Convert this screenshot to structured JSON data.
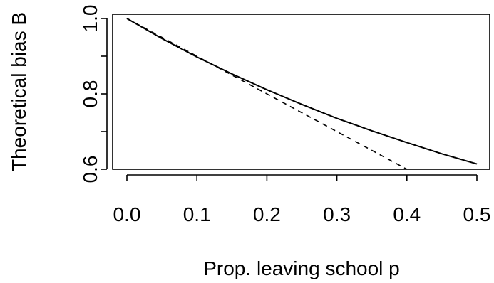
{
  "chart_data": {
    "type": "line",
    "title": "",
    "xlabel": "Prop. leaving school p",
    "ylabel": "Theoretical bias B",
    "xlim": [
      0,
      0.5
    ],
    "ylim": [
      0.6,
      1.0
    ],
    "x_ticks": [
      0.0,
      0.1,
      0.2,
      0.3,
      0.4,
      0.5
    ],
    "x_tick_labels": [
      "0.0",
      "0.1",
      "0.2",
      "0.3",
      "0.4",
      "0.5"
    ],
    "y_ticks": [
      0.6,
      0.7,
      0.8,
      0.9,
      1.0
    ],
    "y_tick_labels": [
      "0.6",
      "",
      "0.8",
      "",
      "1.0"
    ],
    "grid": false,
    "series": [
      {
        "style": "solid",
        "x": [
          0.0,
          0.05,
          0.1,
          0.15,
          0.2,
          0.25,
          0.3,
          0.35,
          0.4,
          0.45,
          0.5
        ],
        "y": [
          1.0,
          0.947,
          0.898,
          0.853,
          0.811,
          0.772,
          0.735,
          0.702,
          0.671,
          0.641,
          0.614
        ]
      },
      {
        "style": "dashed",
        "x": [
          0.0,
          0.4
        ],
        "y": [
          1.0,
          0.6
        ]
      }
    ]
  }
}
